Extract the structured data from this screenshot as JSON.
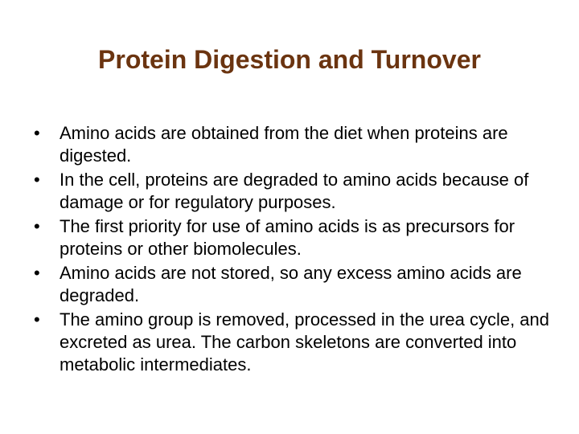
{
  "slide": {
    "title": "Protein Digestion and Turnover",
    "title_color": "#6b3410",
    "title_fontsize": 32,
    "title_fontweight": "bold",
    "background_color": "#ffffff",
    "body_fontsize": 22,
    "body_lineheight": 28,
    "body_color": "#000000",
    "bullet_char": "•",
    "bullets": [
      "Amino acids are obtained from the diet when proteins are digested.",
      "In the cell, proteins are degraded to amino acids because of damage or for regulatory purposes.",
      "The first priority for use of amino acids is as precursors for proteins or other biomolecules.",
      "Amino acids are not stored, so any excess amino acids are degraded.",
      "The amino group is removed, processed in the urea cycle, and excreted as urea. The carbon skeletons are converted into metabolic intermediates."
    ]
  }
}
